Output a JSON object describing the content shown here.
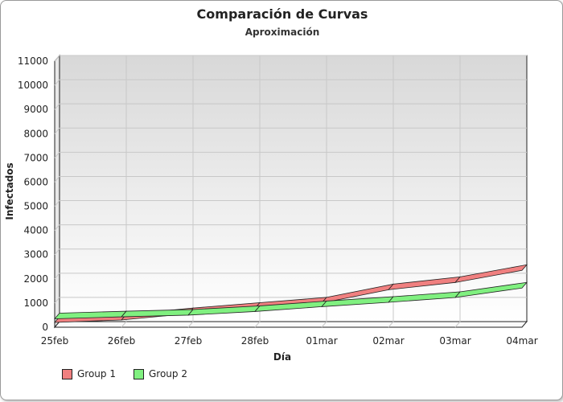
{
  "chart_data": {
    "type": "line",
    "title": "Comparación de Curvas",
    "subtitle": "Aproximación",
    "xlabel": "Día",
    "ylabel": "Infectados",
    "categories": [
      "25feb",
      "26feb",
      "27feb",
      "28feb",
      "01mar",
      "02mar",
      "03mar",
      "04mar"
    ],
    "series": [
      {
        "name": "Group 1",
        "color": "#f08080",
        "values": [
          200,
          300,
          560,
          780,
          1000,
          1550,
          1850,
          2350
        ]
      },
      {
        "name": "Group 2",
        "color": "#80f080",
        "values": [
          350,
          430,
          500,
          650,
          850,
          1030,
          1230,
          1620
        ]
      }
    ],
    "ylim": [
      0,
      11000
    ],
    "yticks": [
      0,
      1000,
      2000,
      3000,
      4000,
      5000,
      6000,
      7000,
      8000,
      9000,
      10000,
      11000
    ],
    "grid": true,
    "legend_position": "bottom-left"
  }
}
